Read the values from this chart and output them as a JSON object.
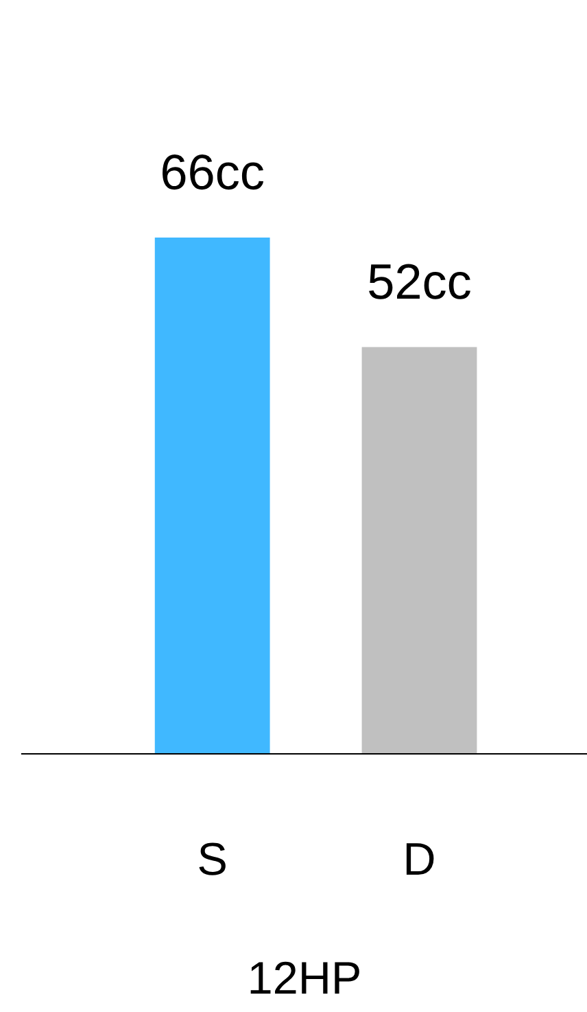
{
  "chart_data": {
    "type": "bar",
    "categories": [
      "S",
      "D"
    ],
    "values": [
      66,
      52
    ],
    "colors": [
      "#40b8ff",
      "#c0c0c0"
    ],
    "value_labels": [
      "66cc",
      "52cc"
    ],
    "xlabel": "12HP",
    "grid": false,
    "legend": false
  }
}
